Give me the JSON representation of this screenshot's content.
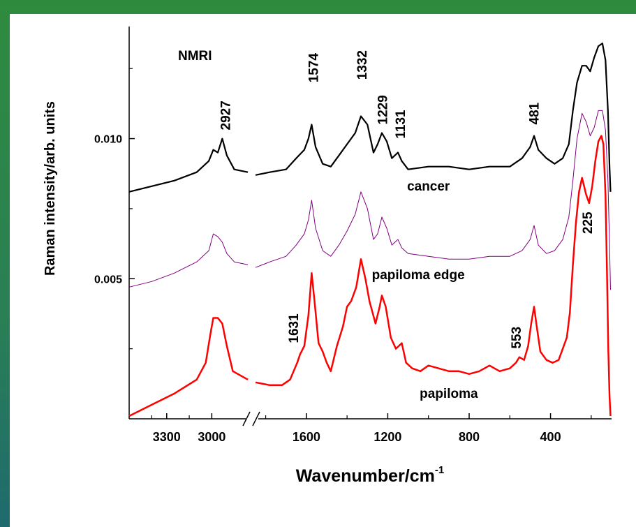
{
  "chart_data": {
    "type": "line",
    "title": "NMRI",
    "xlabel": "Wavenumber/cm",
    "xlabel_superscript": "-1",
    "ylabel": "Raman intensity/arb. units",
    "x_axis_break": true,
    "xlim_left_segment": [
      3550,
      2760
    ],
    "xlim_right_segment": [
      1850,
      100
    ],
    "ylim": [
      0.0,
      0.014
    ],
    "xticks": [
      {
        "value": 3300,
        "label": "3300"
      },
      {
        "value": 3000,
        "label": "3000"
      },
      {
        "value": 1600,
        "label": "1600"
      },
      {
        "value": 1200,
        "label": "1200"
      },
      {
        "value": 800,
        "label": "800"
      },
      {
        "value": 400,
        "label": "400"
      }
    ],
    "yticks": [
      {
        "value": 0.005,
        "label": "0.005"
      },
      {
        "value": 0.01,
        "label": "0.010"
      }
    ],
    "series": [
      {
        "name": "cancer",
        "color": "#000000",
        "points": [
          [
            3550,
            0.0081
          ],
          [
            3400,
            0.0083
          ],
          [
            3250,
            0.0085
          ],
          [
            3100,
            0.0088
          ],
          [
            3020,
            0.0092
          ],
          [
            2990,
            0.0096
          ],
          [
            2960,
            0.0095
          ],
          [
            2930,
            0.01
          ],
          [
            2900,
            0.0094
          ],
          [
            2850,
            0.0089
          ],
          [
            2760,
            0.0088
          ],
          [
            1850,
            0.0087
          ],
          [
            1780,
            0.0088
          ],
          [
            1700,
            0.0089
          ],
          [
            1650,
            0.0093
          ],
          [
            1610,
            0.0096
          ],
          [
            1590,
            0.01
          ],
          [
            1574,
            0.0105
          ],
          [
            1555,
            0.0097
          ],
          [
            1520,
            0.0091
          ],
          [
            1480,
            0.009
          ],
          [
            1440,
            0.0094
          ],
          [
            1400,
            0.0098
          ],
          [
            1360,
            0.0102
          ],
          [
            1332,
            0.0108
          ],
          [
            1300,
            0.0105
          ],
          [
            1270,
            0.0095
          ],
          [
            1250,
            0.0098
          ],
          [
            1229,
            0.0102
          ],
          [
            1205,
            0.0099
          ],
          [
            1180,
            0.0093
          ],
          [
            1150,
            0.0095
          ],
          [
            1131,
            0.0092
          ],
          [
            1100,
            0.0089
          ],
          [
            1000,
            0.009
          ],
          [
            900,
            0.009
          ],
          [
            800,
            0.0089
          ],
          [
            700,
            0.009
          ],
          [
            600,
            0.009
          ],
          [
            540,
            0.0093
          ],
          [
            500,
            0.0097
          ],
          [
            481,
            0.0101
          ],
          [
            460,
            0.0096
          ],
          [
            420,
            0.0093
          ],
          [
            380,
            0.0091
          ],
          [
            340,
            0.0093
          ],
          [
            310,
            0.0098
          ],
          [
            290,
            0.011
          ],
          [
            270,
            0.012
          ],
          [
            245,
            0.0126
          ],
          [
            225,
            0.0126
          ],
          [
            205,
            0.0124
          ],
          [
            185,
            0.0129
          ],
          [
            165,
            0.0133
          ],
          [
            145,
            0.0134
          ],
          [
            130,
            0.0128
          ],
          [
            118,
            0.011
          ],
          [
            110,
            0.009
          ],
          [
            105,
            0.0081
          ]
        ]
      },
      {
        "name": "papiloma edge",
        "color": "#800080",
        "points": [
          [
            3550,
            0.0047
          ],
          [
            3400,
            0.0049
          ],
          [
            3250,
            0.0052
          ],
          [
            3100,
            0.0056
          ],
          [
            3020,
            0.006
          ],
          [
            2990,
            0.0066
          ],
          [
            2960,
            0.0065
          ],
          [
            2930,
            0.0063
          ],
          [
            2900,
            0.0059
          ],
          [
            2850,
            0.0056
          ],
          [
            2760,
            0.0055
          ],
          [
            1850,
            0.0054
          ],
          [
            1780,
            0.0056
          ],
          [
            1700,
            0.0058
          ],
          [
            1650,
            0.0062
          ],
          [
            1610,
            0.0066
          ],
          [
            1590,
            0.0071
          ],
          [
            1574,
            0.0078
          ],
          [
            1555,
            0.0068
          ],
          [
            1520,
            0.006
          ],
          [
            1480,
            0.0058
          ],
          [
            1440,
            0.0062
          ],
          [
            1400,
            0.0067
          ],
          [
            1360,
            0.0073
          ],
          [
            1332,
            0.0081
          ],
          [
            1300,
            0.0075
          ],
          [
            1270,
            0.0064
          ],
          [
            1250,
            0.0066
          ],
          [
            1229,
            0.0072
          ],
          [
            1205,
            0.0068
          ],
          [
            1180,
            0.0062
          ],
          [
            1150,
            0.0064
          ],
          [
            1131,
            0.0061
          ],
          [
            1100,
            0.0059
          ],
          [
            1000,
            0.0058
          ],
          [
            900,
            0.0057
          ],
          [
            800,
            0.0057
          ],
          [
            700,
            0.0058
          ],
          [
            600,
            0.0058
          ],
          [
            540,
            0.006
          ],
          [
            500,
            0.0064
          ],
          [
            481,
            0.0069
          ],
          [
            460,
            0.0062
          ],
          [
            420,
            0.0059
          ],
          [
            380,
            0.006
          ],
          [
            340,
            0.0064
          ],
          [
            310,
            0.0072
          ],
          [
            290,
            0.0085
          ],
          [
            270,
            0.01
          ],
          [
            245,
            0.0109
          ],
          [
            225,
            0.0106
          ],
          [
            205,
            0.0101
          ],
          [
            185,
            0.0104
          ],
          [
            165,
            0.011
          ],
          [
            145,
            0.011
          ],
          [
            130,
            0.0103
          ],
          [
            118,
            0.0085
          ],
          [
            110,
            0.0062
          ],
          [
            105,
            0.0046
          ]
        ]
      },
      {
        "name": "papiloma",
        "color": "#ff0000",
        "points": [
          [
            3550,
            0.0001
          ],
          [
            3400,
            0.0005
          ],
          [
            3250,
            0.0009
          ],
          [
            3100,
            0.0014
          ],
          [
            3040,
            0.002
          ],
          [
            3010,
            0.003
          ],
          [
            2990,
            0.0036
          ],
          [
            2960,
            0.0036
          ],
          [
            2930,
            0.0034
          ],
          [
            2900,
            0.0026
          ],
          [
            2860,
            0.0017
          ],
          [
            2760,
            0.0014
          ],
          [
            1850,
            0.0013
          ],
          [
            1780,
            0.0012
          ],
          [
            1720,
            0.0012
          ],
          [
            1680,
            0.0014
          ],
          [
            1645,
            0.002
          ],
          [
            1631,
            0.0023
          ],
          [
            1610,
            0.0026
          ],
          [
            1590,
            0.0037
          ],
          [
            1574,
            0.0052
          ],
          [
            1560,
            0.0042
          ],
          [
            1540,
            0.0027
          ],
          [
            1520,
            0.0024
          ],
          [
            1500,
            0.002
          ],
          [
            1480,
            0.0017
          ],
          [
            1450,
            0.0026
          ],
          [
            1420,
            0.0033
          ],
          [
            1400,
            0.004
          ],
          [
            1380,
            0.0042
          ],
          [
            1355,
            0.0047
          ],
          [
            1332,
            0.0057
          ],
          [
            1310,
            0.005
          ],
          [
            1290,
            0.0042
          ],
          [
            1260,
            0.0034
          ],
          [
            1240,
            0.004
          ],
          [
            1229,
            0.0044
          ],
          [
            1210,
            0.004
          ],
          [
            1185,
            0.0029
          ],
          [
            1160,
            0.0025
          ],
          [
            1131,
            0.0027
          ],
          [
            1110,
            0.002
          ],
          [
            1080,
            0.0018
          ],
          [
            1040,
            0.0017
          ],
          [
            1000,
            0.0019
          ],
          [
            950,
            0.0018
          ],
          [
            900,
            0.0017
          ],
          [
            850,
            0.0017
          ],
          [
            800,
            0.0016
          ],
          [
            750,
            0.0017
          ],
          [
            700,
            0.0019
          ],
          [
            650,
            0.0017
          ],
          [
            600,
            0.0018
          ],
          [
            570,
            0.002
          ],
          [
            553,
            0.0022
          ],
          [
            530,
            0.0021
          ],
          [
            510,
            0.0026
          ],
          [
            495,
            0.0034
          ],
          [
            481,
            0.004
          ],
          [
            470,
            0.0034
          ],
          [
            450,
            0.0024
          ],
          [
            420,
            0.0021
          ],
          [
            390,
            0.002
          ],
          [
            360,
            0.0021
          ],
          [
            340,
            0.0025
          ],
          [
            320,
            0.0029
          ],
          [
            305,
            0.0038
          ],
          [
            290,
            0.0055
          ],
          [
            275,
            0.007
          ],
          [
            260,
            0.0081
          ],
          [
            245,
            0.0086
          ],
          [
            235,
            0.0083
          ],
          [
            225,
            0.008
          ],
          [
            210,
            0.0077
          ],
          [
            195,
            0.0083
          ],
          [
            180,
            0.0092
          ],
          [
            165,
            0.0099
          ],
          [
            150,
            0.0101
          ],
          [
            140,
            0.0098
          ],
          [
            130,
            0.008
          ],
          [
            122,
            0.005
          ],
          [
            116,
            0.0025
          ],
          [
            110,
            0.0008
          ],
          [
            105,
            0.0001
          ]
        ]
      }
    ],
    "series_labels": [
      {
        "text": "cancer",
        "x": 1000,
        "y": 0.00815
      },
      {
        "text": "papiloma edge",
        "x": 1050,
        "y": 0.00498
      },
      {
        "text": "papiloma",
        "x": 900,
        "y": 0.00075
      }
    ],
    "annotations": [
      {
        "text": "2927",
        "x": 2910,
        "y": 0.0103
      },
      {
        "text": "1574",
        "x": 1567,
        "y": 0.012
      },
      {
        "text": "1332",
        "x": 1328,
        "y": 0.0121
      },
      {
        "text": "1229",
        "x": 1227,
        "y": 0.0105
      },
      {
        "text": "1131",
        "x": 1139,
        "y": 0.01
      },
      {
        "text": "481",
        "x": 482,
        "y": 0.0105
      },
      {
        "text": "225",
        "x": 220,
        "y": 0.0066
      },
      {
        "text": "1631",
        "x": 1664,
        "y": 0.0027
      },
      {
        "text": "553",
        "x": 570,
        "y": 0.0025
      }
    ]
  }
}
